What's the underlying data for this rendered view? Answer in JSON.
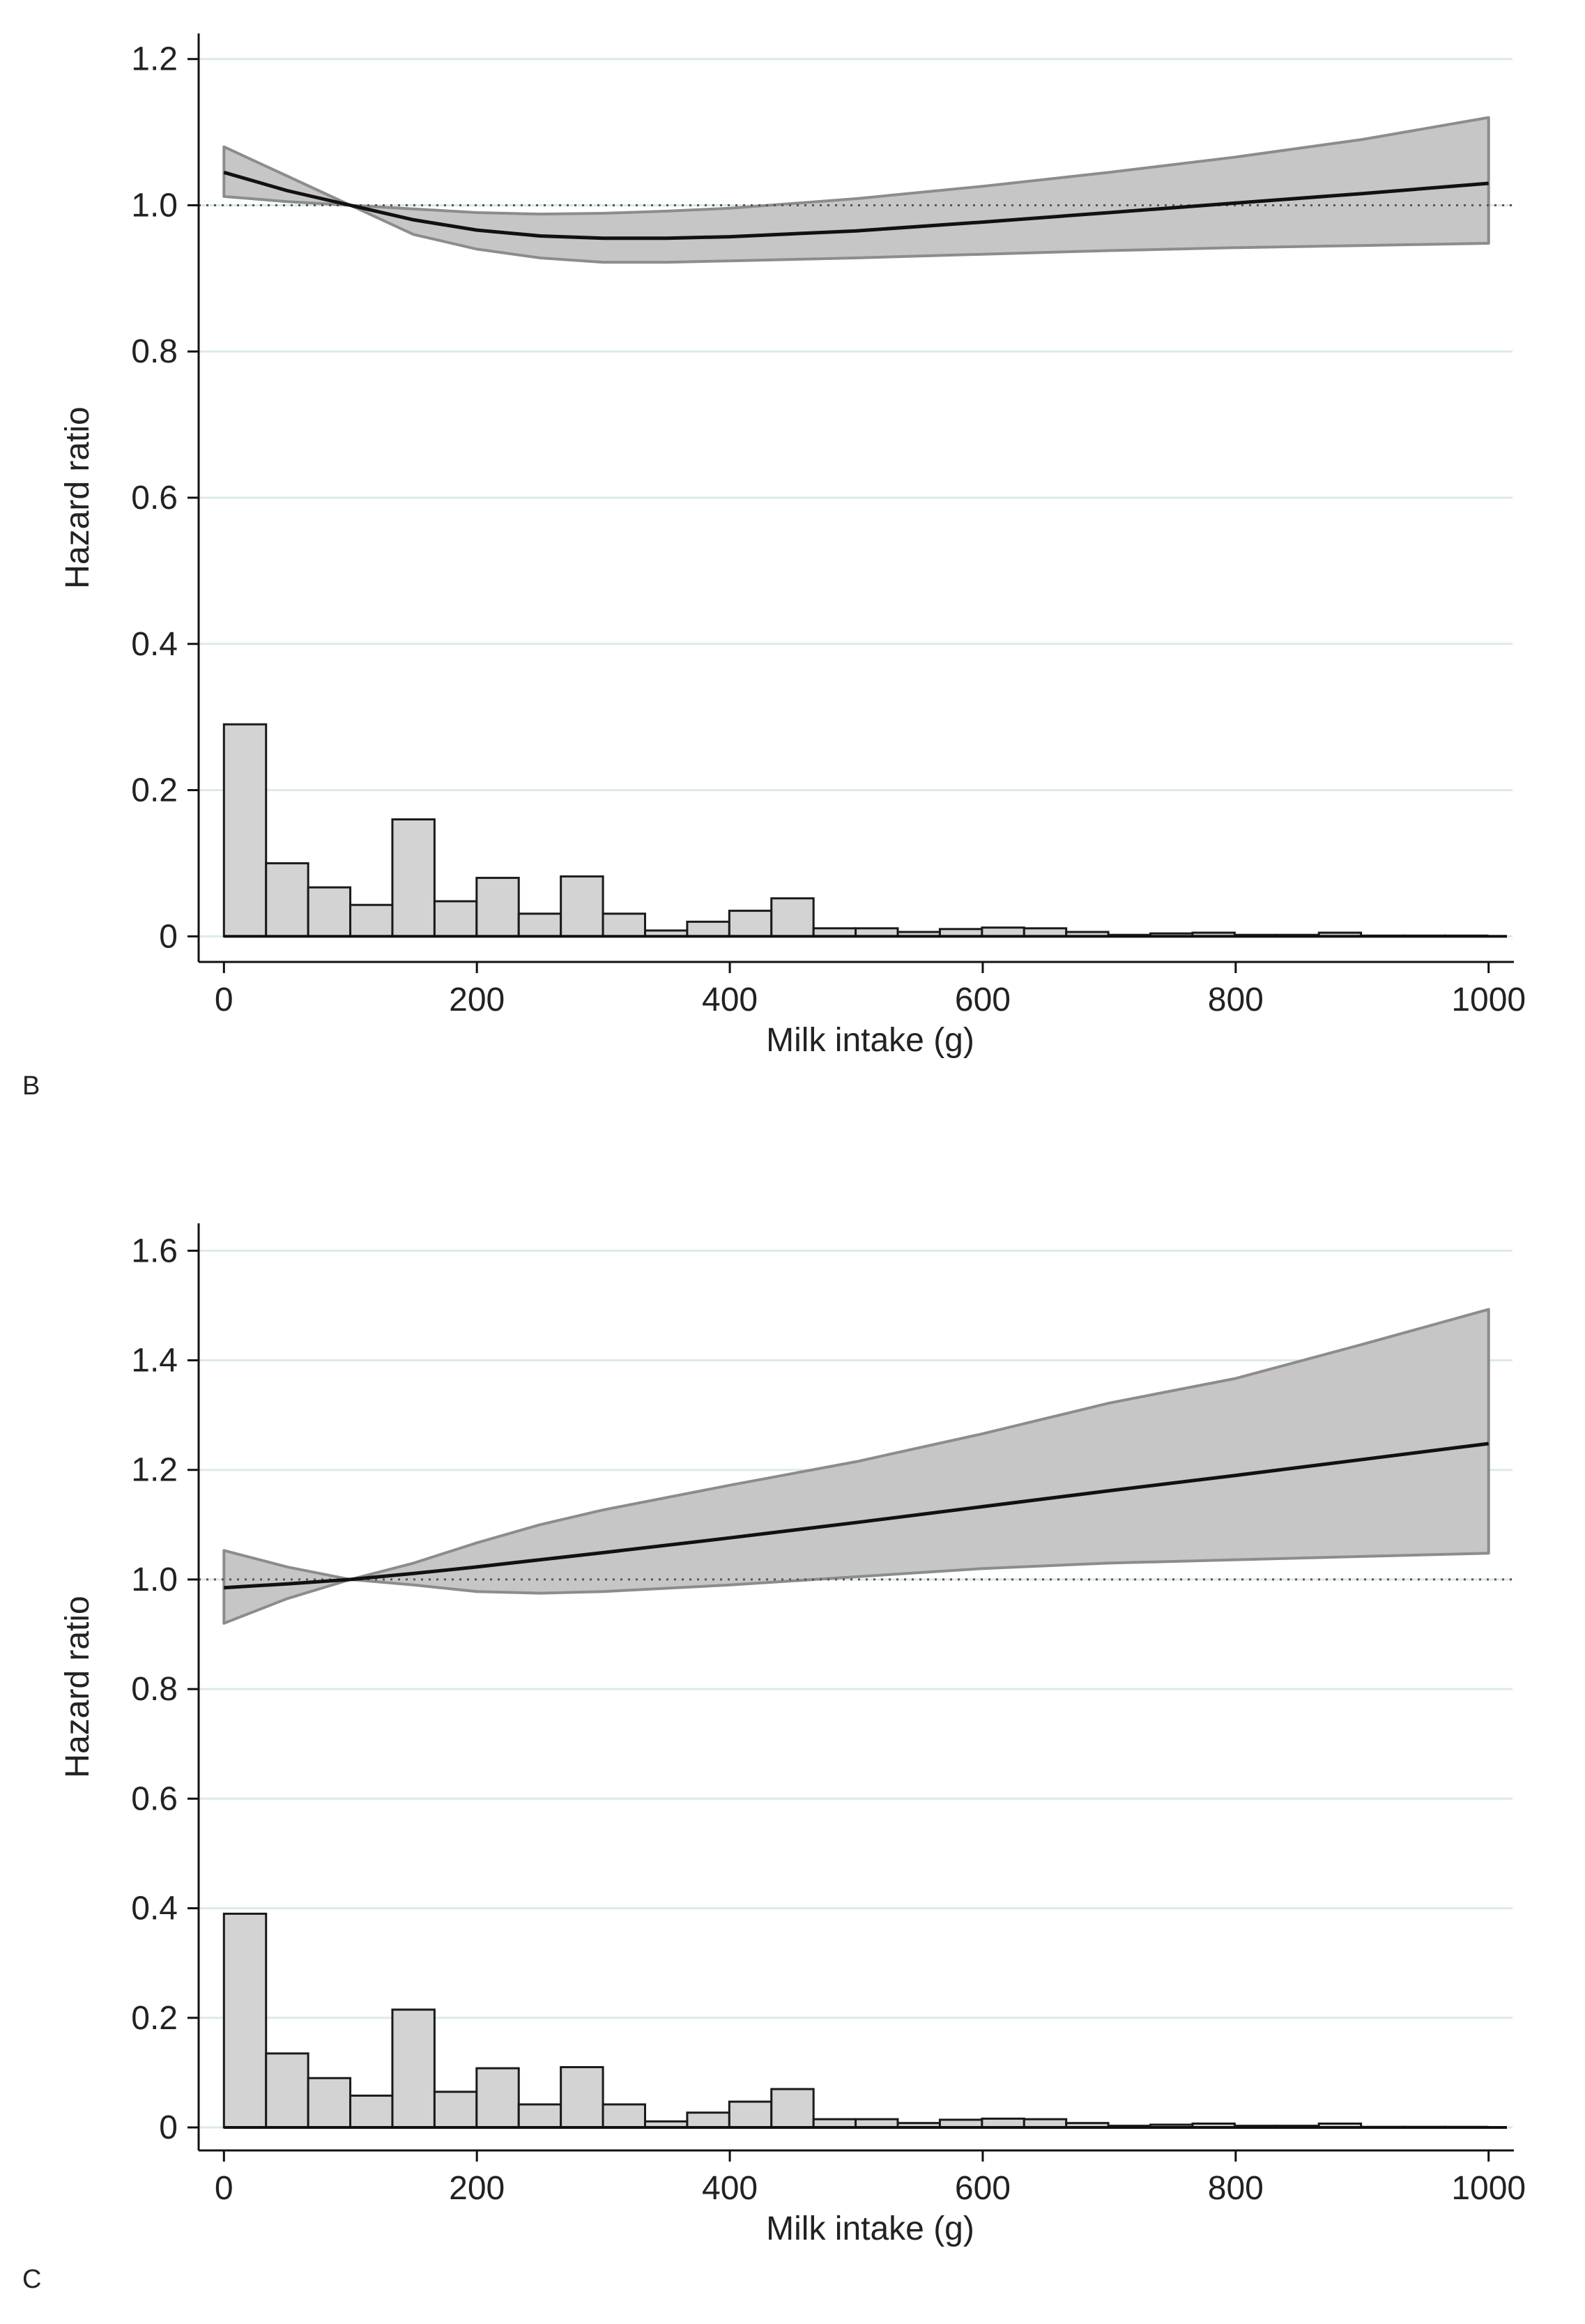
{
  "chart_data": [
    {
      "type": "line",
      "panel_label": "B",
      "xlabel": "Milk intake (g)",
      "ylabel": "Hazard ratio",
      "xlim": [
        -20,
        1020
      ],
      "ylim": [
        -0.035,
        1.235
      ],
      "xticks": [
        0,
        200,
        400,
        600,
        800,
        1000
      ],
      "yticks": [
        0,
        0.2,
        0.4,
        0.6,
        0.8,
        1.0,
        1.2
      ],
      "ytick_labels": [
        "0",
        "0.2",
        "0.4",
        "0.6",
        "0.8",
        "1.0",
        "1.2"
      ],
      "grid": true,
      "reference_line": 1.0,
      "curve": {
        "x": [
          0,
          50,
          100,
          150,
          200,
          250,
          300,
          350,
          400,
          500,
          600,
          700,
          800,
          900,
          1000
        ],
        "hr": [
          1.045,
          1.02,
          1.0,
          0.98,
          0.966,
          0.958,
          0.955,
          0.955,
          0.957,
          0.965,
          0.977,
          0.99,
          1.003,
          1.016,
          1.03
        ],
        "lower": [
          1.012,
          1.005,
          1.0,
          0.96,
          0.94,
          0.928,
          0.922,
          0.922,
          0.924,
          0.928,
          0.933,
          0.938,
          0.942,
          0.945,
          0.948
        ],
        "upper": [
          1.08,
          1.04,
          1.0,
          0.995,
          0.99,
          0.988,
          0.989,
          0.992,
          0.996,
          1.009,
          1.026,
          1.045,
          1.066,
          1.09,
          1.12
        ]
      },
      "histogram": {
        "bin_width": 33.3,
        "bin_starts": [
          0,
          33.3,
          66.6,
          99.9,
          133.2,
          166.5,
          199.8,
          233.1,
          266.4,
          299.7,
          333,
          366.3,
          399.6,
          432.9,
          466.2,
          499.5,
          532.8,
          566.1,
          599.4,
          632.7,
          666,
          699.3,
          732.6,
          765.9,
          799.2,
          832.5,
          865.8,
          899.1,
          932.4,
          965.7
        ],
        "values": [
          0.29,
          0.1,
          0.067,
          0.043,
          0.16,
          0.048,
          0.08,
          0.031,
          0.082,
          0.031,
          0.008,
          0.02,
          0.035,
          0.052,
          0.011,
          0.011,
          0.006,
          0.01,
          0.012,
          0.011,
          0.006,
          0.002,
          0.004,
          0.005,
          0.002,
          0.002,
          0.005,
          0.001,
          0.001,
          0.001
        ]
      }
    },
    {
      "type": "line",
      "panel_label": "C",
      "xlabel": "Milk intake (g)",
      "ylabel": "Hazard ratio",
      "xlim": [
        -20,
        1020
      ],
      "ylim": [
        -0.042,
        1.65
      ],
      "xticks": [
        0,
        200,
        400,
        600,
        800,
        1000
      ],
      "yticks": [
        0,
        0.2,
        0.4,
        0.6,
        0.8,
        1.0,
        1.2,
        1.4,
        1.6
      ],
      "ytick_labels": [
        "0",
        "0.2",
        "0.4",
        "0.6",
        "0.8",
        "1.0",
        "1.2",
        "1.4",
        "1.6"
      ],
      "grid": true,
      "reference_line": 1.0,
      "curve": {
        "x": [
          0,
          50,
          100,
          150,
          200,
          250,
          300,
          400,
          500,
          600,
          700,
          800,
          900,
          1000
        ],
        "hr": [
          0.985,
          0.992,
          1.0,
          1.011,
          1.023,
          1.036,
          1.049,
          1.076,
          1.104,
          1.133,
          1.162,
          1.19,
          1.219,
          1.248
        ],
        "lower": [
          0.92,
          0.965,
          1.0,
          0.99,
          0.978,
          0.975,
          0.978,
          0.99,
          1.005,
          1.02,
          1.03,
          1.036,
          1.042,
          1.048
        ],
        "upper": [
          1.053,
          1.023,
          1.0,
          1.03,
          1.067,
          1.1,
          1.127,
          1.172,
          1.215,
          1.266,
          1.322,
          1.367,
          1.429,
          1.493
        ]
      },
      "histogram": {
        "bin_width": 33.3,
        "bin_starts": [
          0,
          33.3,
          66.6,
          99.9,
          133.2,
          166.5,
          199.8,
          233.1,
          266.4,
          299.7,
          333,
          366.3,
          399.6,
          432.9,
          466.2,
          499.5,
          532.8,
          566.1,
          599.4,
          632.7,
          666,
          699.3,
          732.6,
          765.9,
          799.2,
          832.5,
          865.8,
          899.1,
          932.4,
          965.7
        ],
        "values": [
          0.39,
          0.135,
          0.09,
          0.058,
          0.215,
          0.065,
          0.108,
          0.042,
          0.11,
          0.042,
          0.011,
          0.027,
          0.047,
          0.07,
          0.015,
          0.015,
          0.008,
          0.014,
          0.016,
          0.015,
          0.008,
          0.003,
          0.005,
          0.007,
          0.003,
          0.003,
          0.007,
          0.001,
          0.001,
          0.001
        ]
      }
    }
  ]
}
